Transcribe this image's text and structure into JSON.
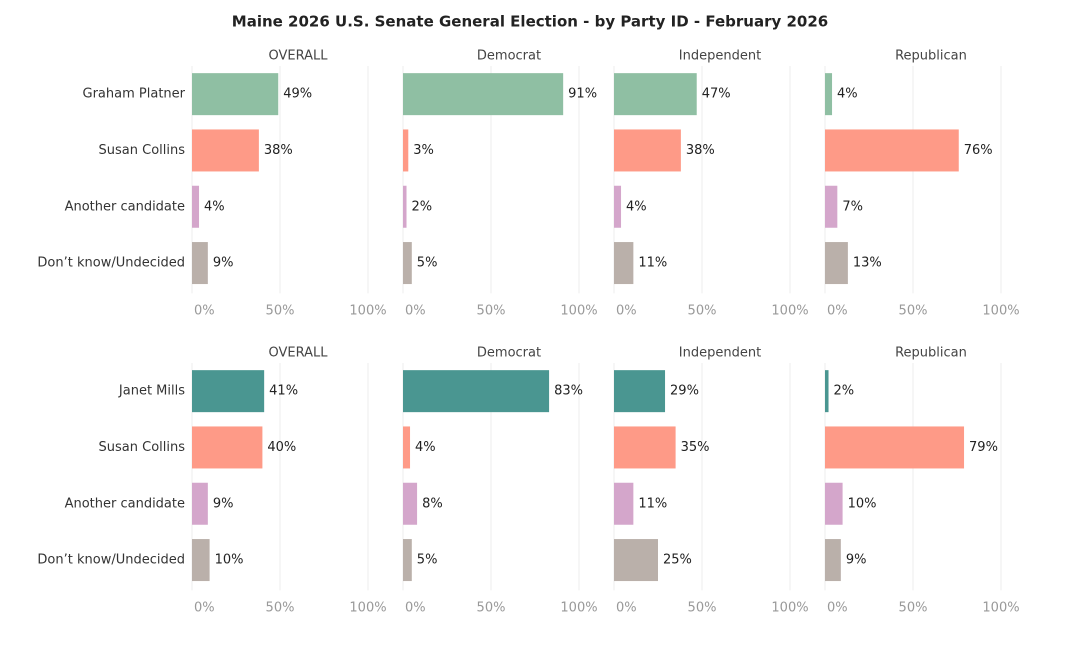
{
  "title": "Maine 2026 U.S. Senate General Election - by Party ID - February 2026",
  "chart_data": [
    {
      "type": "hbar",
      "categories": [
        "Graham Platner",
        "Susan Collins",
        "Another candidate",
        "Don’t know/Undecided"
      ],
      "colors": [
        "#8fbfa3",
        "#fe9a87",
        "#d4a6cb",
        "#bab0aa"
      ],
      "xlim": [
        0,
        100
      ],
      "xticks": [
        {
          "value": 0,
          "label": "0%"
        },
        {
          "value": 50,
          "label": "50%"
        },
        {
          "value": 100,
          "label": "100%"
        }
      ],
      "grid": true,
      "panels": [
        {
          "title": "OVERALL",
          "values": [
            49,
            38,
            4,
            9
          ],
          "value_labels": [
            "49%",
            "38%",
            "4%",
            "9%"
          ]
        },
        {
          "title": "Democrat",
          "values": [
            91,
            3,
            2,
            5
          ],
          "value_labels": [
            "91%",
            "3%",
            "2%",
            "5%"
          ]
        },
        {
          "title": "Independent",
          "values": [
            47,
            38,
            4,
            11
          ],
          "value_labels": [
            "47%",
            "38%",
            "4%",
            "11%"
          ]
        },
        {
          "title": "Republican",
          "values": [
            4,
            76,
            7,
            13
          ],
          "value_labels": [
            "4%",
            "76%",
            "7%",
            "13%"
          ]
        }
      ]
    },
    {
      "type": "hbar",
      "categories": [
        "Janet Mills",
        "Susan Collins",
        "Another candidate",
        "Don’t know/Undecided"
      ],
      "colors": [
        "#4a9691",
        "#fe9a87",
        "#d4a6cb",
        "#bab0aa"
      ],
      "xlim": [
        0,
        100
      ],
      "xticks": [
        {
          "value": 0,
          "label": "0%"
        },
        {
          "value": 50,
          "label": "50%"
        },
        {
          "value": 100,
          "label": "100%"
        }
      ],
      "grid": true,
      "panels": [
        {
          "title": "OVERALL",
          "values": [
            41,
            40,
            9,
            10
          ],
          "value_labels": [
            "41%",
            "40%",
            "9%",
            "10%"
          ]
        },
        {
          "title": "Democrat",
          "values": [
            83,
            4,
            8,
            5
          ],
          "value_labels": [
            "83%",
            "4%",
            "8%",
            "5%"
          ]
        },
        {
          "title": "Independent",
          "values": [
            29,
            35,
            11,
            25
          ],
          "value_labels": [
            "29%",
            "35%",
            "11%",
            "25%"
          ]
        },
        {
          "title": "Republican",
          "values": [
            2,
            79,
            10,
            9
          ],
          "value_labels": [
            "2%",
            "79%",
            "10%",
            "9%"
          ]
        }
      ]
    }
  ]
}
